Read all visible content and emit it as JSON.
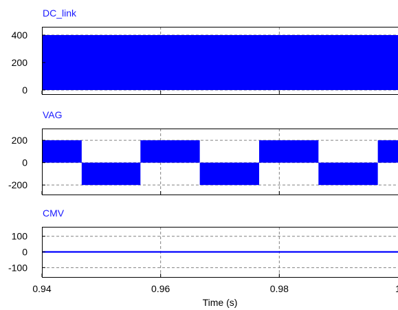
{
  "chart_data": [
    {
      "type": "line",
      "title": "DC_link",
      "series": [
        {
          "name": "DC_link",
          "kind": "band",
          "fill": "#0000ff",
          "bands": [
            [
              0.94,
              1.0,
              0,
              400
            ]
          ]
        }
      ],
      "yticks": [
        0,
        200,
        400
      ],
      "ylim": [
        -30,
        460
      ],
      "grid": "dashed",
      "xlim": [
        0.94,
        1.0
      ]
    },
    {
      "type": "line",
      "title": "VAG",
      "series": [
        {
          "name": "VAG",
          "kind": "band",
          "fill": "#0000ff",
          "bands": [
            [
              0.94,
              0.9467,
              0,
              200
            ],
            [
              0.9467,
              0.9566,
              -200,
              0
            ],
            [
              0.9566,
              0.9666,
              0,
              200
            ],
            [
              0.9666,
              0.9766,
              -200,
              0
            ],
            [
              0.9766,
              0.9866,
              0,
              200
            ],
            [
              0.9866,
              0.9966,
              -200,
              0
            ],
            [
              0.9966,
              1.0,
              0,
              200
            ]
          ]
        }
      ],
      "yticks": [
        -200,
        0,
        200
      ],
      "ylim": [
        -285,
        305
      ],
      "grid": "dashed",
      "xlim": [
        0.94,
        1.0
      ]
    },
    {
      "type": "line",
      "title": "CMV",
      "series": [
        {
          "name": "CMV",
          "kind": "line",
          "color": "#0000ff",
          "x": [
            0.94,
            1.0
          ],
          "y": [
            0,
            0
          ]
        }
      ],
      "yticks": [
        -100,
        0,
        100
      ],
      "ylim": [
        -160,
        160
      ],
      "grid": "dashed",
      "xlim": [
        0.94,
        1.0
      ]
    }
  ],
  "x_axis": {
    "label": "Time (s)",
    "ticks": [
      {
        "value": 0.94,
        "label": "0.94"
      },
      {
        "value": 0.96,
        "label": "0.96"
      },
      {
        "value": 0.98,
        "label": "0.98"
      },
      {
        "value": 1.0,
        "label": "1"
      }
    ],
    "range": [
      0.94,
      1.0
    ]
  },
  "colors": {
    "signal": "#0000ff",
    "title": "#1a1aff",
    "frame": "#000000",
    "grid": "#808080"
  }
}
